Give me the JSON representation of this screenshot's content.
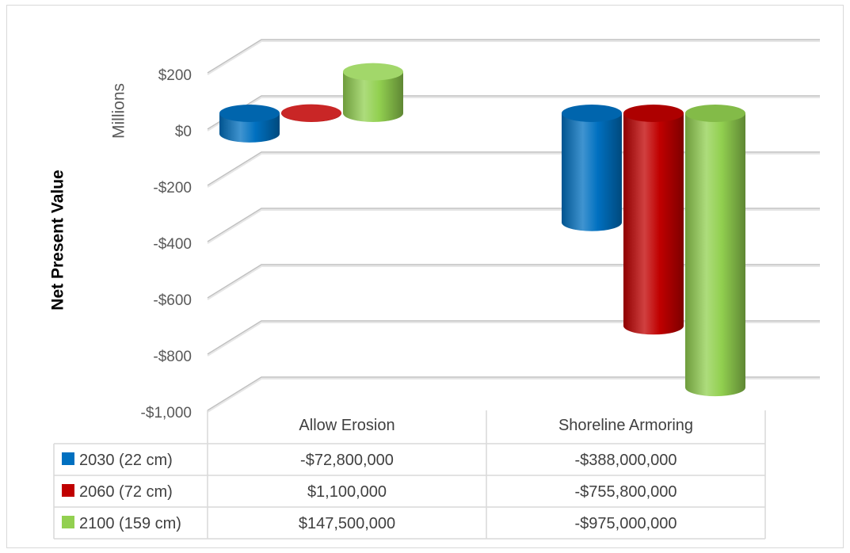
{
  "chart_data": {
    "type": "bar",
    "style": "3d-cylinder",
    "ylabel": "Net Present Value",
    "y_display_unit": "Millions",
    "ylim": [
      -1000,
      200
    ],
    "y_ticks": [
      200,
      0,
      -200,
      -400,
      -600,
      -800,
      -1000
    ],
    "y_tick_labels": [
      "$200",
      "$0",
      "-$200",
      "-$400",
      "-$600",
      "-$800",
      "-$1,000"
    ],
    "categories": [
      "Allow Erosion",
      "Shoreline Armoring"
    ],
    "series": [
      {
        "name": "2030 (22 cm)",
        "color": "#0070c0",
        "values": [
          -72800000,
          -388000000
        ],
        "value_labels": [
          "-$72,800,000",
          "-$388,000,000"
        ]
      },
      {
        "name": "2060 (72 cm)",
        "color": "#c00000",
        "values": [
          1100000,
          -755800000
        ],
        "value_labels": [
          "$1,100,000",
          "-$755,800,000"
        ]
      },
      {
        "name": "2100 (159 cm)",
        "color": "#92d050",
        "values": [
          147500000,
          -975000000
        ],
        "value_labels": [
          "$147,500,000",
          "-$975,000,000"
        ]
      }
    ],
    "grid": true,
    "legend": "data-table"
  }
}
